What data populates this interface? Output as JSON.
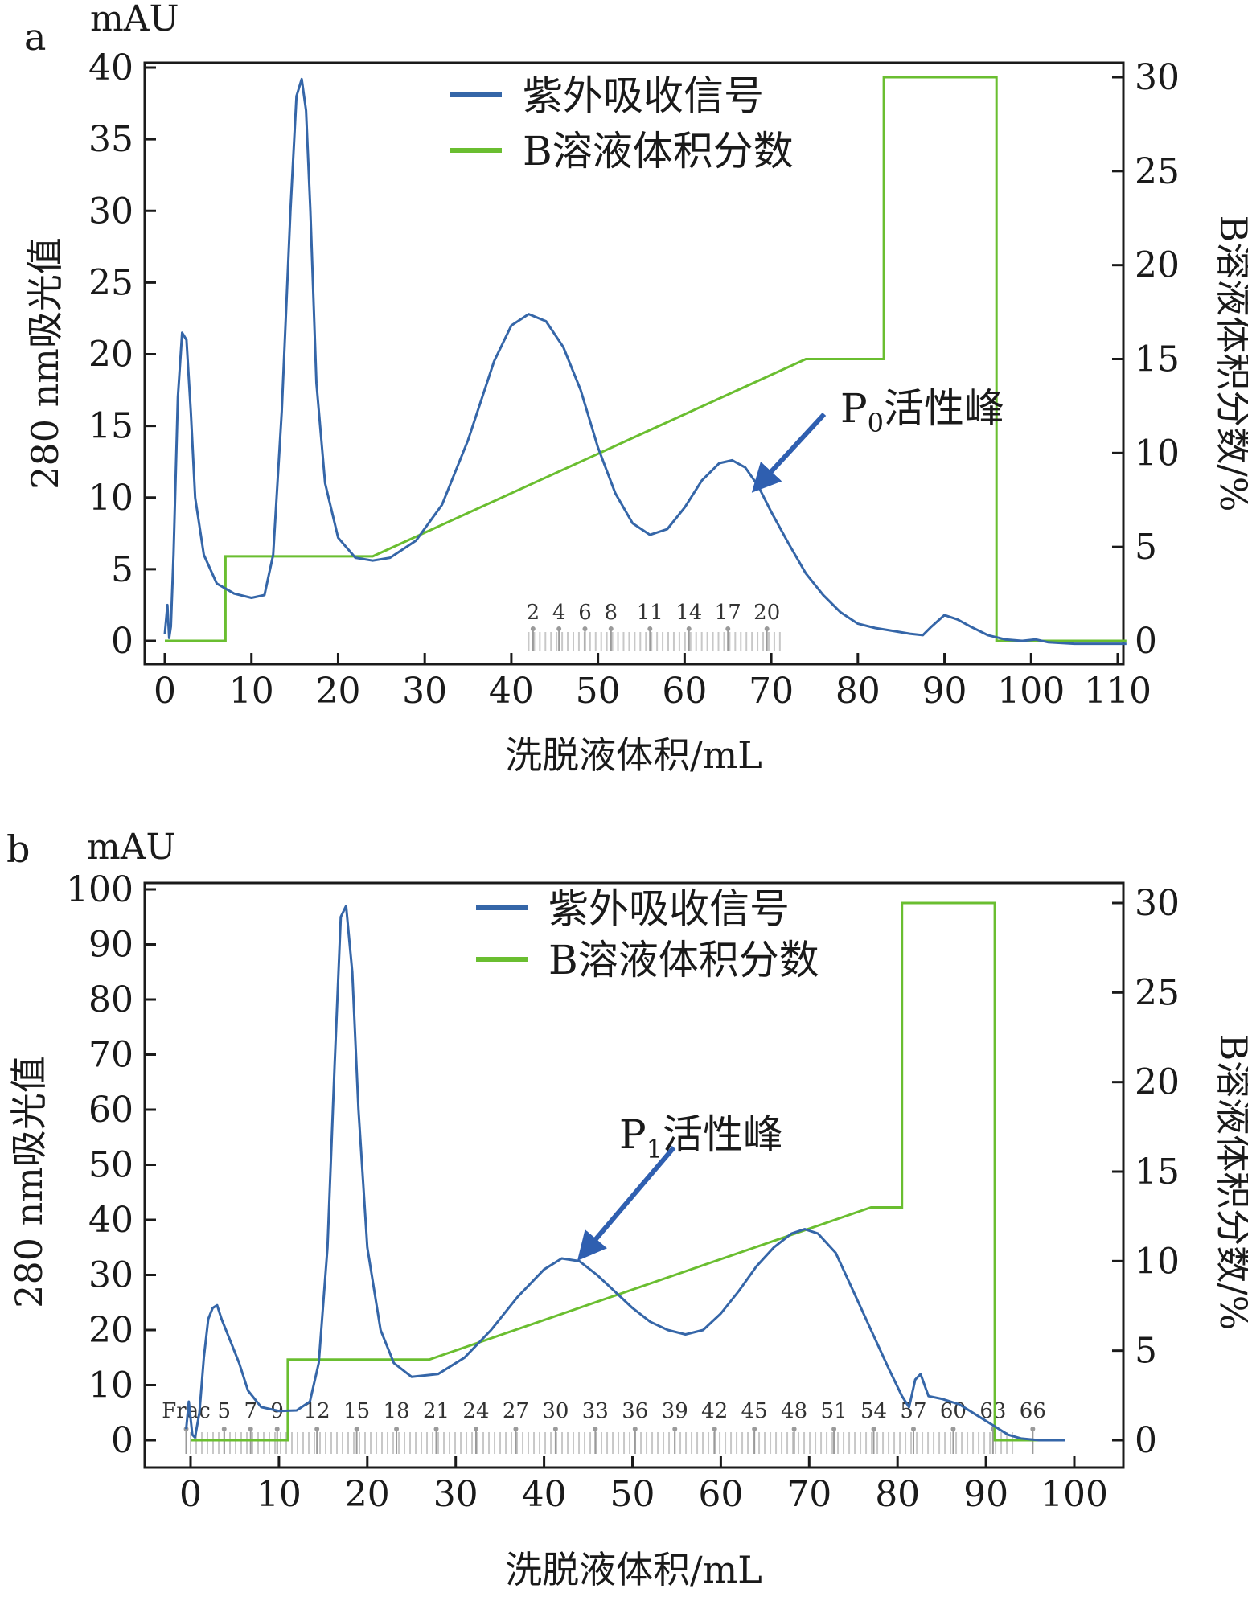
{
  "colors": {
    "uv": "#3566a8",
    "b_fraction": "#6abe30",
    "arrow": "#2f5fb0",
    "axis": "#1a1a1a",
    "frac": "#9a9a9a"
  },
  "chart_data": [
    {
      "panel_label": "a",
      "type": "line",
      "xlabel": "洗脱液体积/mL",
      "ylabel": "280 nm吸光值",
      "ylabel_unit": "mAU",
      "y2label": "B溶液体积分数/%",
      "xlim": [
        0,
        110
      ],
      "ylim": [
        0,
        40
      ],
      "y2lim": [
        0,
        30
      ],
      "x_ticks": [
        0,
        10,
        20,
        30,
        40,
        50,
        60,
        70,
        80,
        90,
        100,
        110
      ],
      "y_ticks": [
        0,
        5,
        10,
        15,
        20,
        25,
        30,
        35,
        40
      ],
      "y2_ticks": [
        0,
        5,
        10,
        15,
        20,
        25,
        30
      ],
      "legend": [
        "紫外吸收信号",
        "B溶液体积分数"
      ],
      "annotation": {
        "text_main": "P",
        "text_sub": "0",
        "text_rest": "活性峰",
        "target_x": 68,
        "target_y": 10.5
      },
      "fractions": {
        "labels": [
          "2",
          "4",
          "6",
          "8",
          "11",
          "14",
          "17",
          "20"
        ],
        "label_x": [
          42.5,
          45.5,
          48.5,
          51.5,
          56,
          60.5,
          65,
          69.5
        ],
        "range": [
          42,
          71
        ]
      },
      "series": [
        {
          "name": "紫外吸收信号",
          "axis": "left",
          "x": [
            0,
            0.3,
            0.5,
            0.7,
            1.0,
            1.5,
            2.0,
            2.5,
            3.0,
            3.5,
            4.5,
            6,
            8,
            10,
            11.5,
            12.5,
            13.5,
            14.5,
            15.2,
            15.8,
            16.3,
            16.8,
            17.5,
            18.5,
            20,
            22,
            24,
            26,
            29,
            32,
            35,
            38,
            40,
            42,
            44,
            46,
            48,
            50,
            52,
            54,
            56,
            58,
            60,
            62,
            64,
            65.5,
            67,
            68.5,
            70,
            72,
            74,
            76,
            78,
            80,
            82,
            84,
            86,
            87.5,
            88.5,
            90,
            91.5,
            93,
            95,
            97,
            99,
            100.5,
            102,
            105,
            108,
            111
          ],
          "values": [
            0.5,
            2.5,
            0.2,
            1.0,
            6,
            17,
            21.5,
            21,
            16,
            10,
            6,
            4,
            3.3,
            3.0,
            3.2,
            6,
            16,
            30,
            38,
            39.2,
            37,
            30,
            18,
            11,
            7.2,
            5.8,
            5.6,
            5.8,
            7.0,
            9.5,
            14,
            19.5,
            22,
            22.8,
            22.3,
            20.5,
            17.5,
            13.5,
            10.3,
            8.2,
            7.4,
            7.8,
            9.3,
            11.2,
            12.4,
            12.6,
            12.1,
            10.8,
            9.0,
            6.8,
            4.7,
            3.2,
            2.0,
            1.2,
            0.9,
            0.7,
            0.5,
            0.4,
            1.0,
            1.8,
            1.5,
            1.0,
            0.4,
            0.1,
            0.0,
            0.1,
            -0.1,
            -0.2,
            -0.2,
            -0.2
          ]
        },
        {
          "name": "B溶液体积分数",
          "axis": "right",
          "x": [
            0,
            7,
            7,
            24,
            74,
            83,
            83,
            96,
            96,
            111
          ],
          "values": [
            0,
            0,
            4.5,
            4.5,
            15,
            15,
            30,
            30,
            0,
            0
          ]
        }
      ]
    },
    {
      "panel_label": "b",
      "type": "line",
      "xlabel": "洗脱液体积/mL",
      "ylabel": "280 nm吸光值",
      "ylabel_unit": "mAU",
      "y2label": "B溶液体积分数/%",
      "xlim": [
        0,
        100
      ],
      "ylim": [
        0,
        100
      ],
      "y2lim": [
        0,
        30
      ],
      "x_ticks": [
        0,
        10,
        20,
        30,
        40,
        50,
        60,
        70,
        80,
        90,
        100
      ],
      "y_ticks": [
        0,
        10,
        20,
        30,
        40,
        50,
        60,
        70,
        80,
        90,
        100
      ],
      "y2_ticks": [
        0,
        5,
        10,
        15,
        20,
        25,
        30
      ],
      "legend": [
        "紫外吸收信号",
        "B溶液体积分数"
      ],
      "annotation": {
        "text_main": "P",
        "text_sub": "1",
        "text_rest": "活性峰",
        "target_x": 44,
        "target_y": 33
      },
      "fractions": {
        "labels": [
          "Frac",
          "5",
          "7",
          "9",
          "12",
          "15",
          "18",
          "21",
          "24",
          "27",
          "30",
          "33",
          "36",
          "39",
          "42",
          "45",
          "48",
          "51",
          "54",
          "57",
          "60",
          "63",
          "66"
        ],
        "label_x": [
          -0.5,
          3.8,
          6.8,
          9.8,
          14.3,
          18.8,
          23.3,
          27.8,
          32.3,
          36.8,
          41.3,
          45.8,
          50.3,
          54.8,
          59.3,
          63.8,
          68.3,
          72.8,
          77.3,
          81.8,
          86.3,
          90.8,
          95.3
        ],
        "range": [
          0,
          93
        ]
      },
      "series": [
        {
          "name": "紫外吸收信号",
          "axis": "left",
          "x": [
            -0.5,
            -0.2,
            0.2,
            0.5,
            1.0,
            1.5,
            2.0,
            2.5,
            3.0,
            3.5,
            4.5,
            5.5,
            6.5,
            8,
            10,
            12,
            13.5,
            14.5,
            15.5,
            16.3,
            17.0,
            17.6,
            18.3,
            19.0,
            20.0,
            21.5,
            23,
            25,
            28,
            31,
            34,
            37,
            40,
            42,
            44,
            46,
            48,
            50,
            52,
            54,
            56,
            58,
            60,
            62,
            64,
            66,
            68,
            69.5,
            71,
            73,
            75,
            77,
            79,
            80.5,
            81.3,
            82.0,
            82.6,
            83.5,
            85,
            87,
            89,
            91,
            92.5,
            94,
            96,
            98,
            99
          ],
          "values": [
            2,
            7,
            1,
            0.5,
            5,
            15,
            22,
            24,
            24.5,
            22,
            18,
            14,
            9,
            6,
            5.3,
            5.4,
            7,
            14,
            35,
            68,
            95,
            97,
            85,
            60,
            35,
            20,
            14,
            11.5,
            12,
            15,
            20,
            26,
            31,
            33,
            32.5,
            30,
            27,
            24,
            21.5,
            20,
            19.2,
            20,
            23,
            27,
            31.5,
            35,
            37.5,
            38.3,
            37.5,
            34,
            27,
            20,
            13,
            8,
            6,
            11,
            12,
            8,
            7.5,
            6.5,
            4.5,
            2.5,
            1.0,
            0.3,
            0.0,
            0.0,
            0.0
          ]
        },
        {
          "name": "B溶液体积分数",
          "axis": "right",
          "x": [
            0,
            11,
            11,
            27,
            77,
            80.5,
            80.5,
            91,
            91,
            99
          ],
          "values": [
            0,
            0,
            4.5,
            4.5,
            13,
            13,
            30,
            30,
            0,
            0
          ]
        }
      ]
    }
  ]
}
